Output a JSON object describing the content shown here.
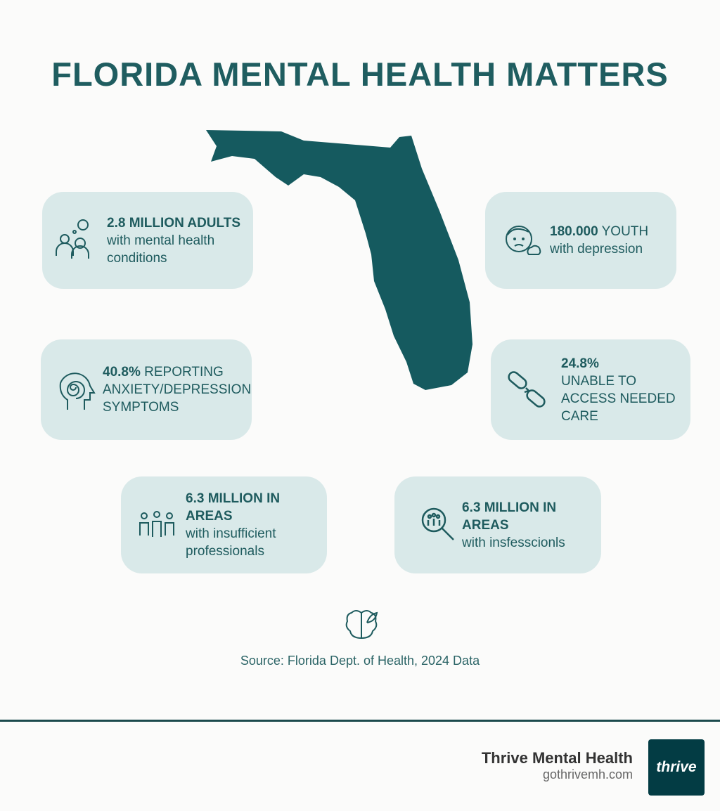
{
  "title": "FLORIDA MENTAL HEALTH MATTERS",
  "stats": [
    {
      "bold": "2.8 MILLION ADULTS",
      "text": "with mental health conditions",
      "icon": "people-thought-icon"
    },
    {
      "bold": "180.000",
      "rest": " YOUTH",
      "text": "with depression",
      "icon": "sad-face-cloud-icon"
    },
    {
      "bold": "40.8%",
      "rest": " REPORTING",
      "text": "ANXIETY/DEPRESSION SYMPTOMS",
      "icon": "head-spiral-icon"
    },
    {
      "bold": "24.8%",
      "text": "UNABLE TO ACCESS NEEDED CARE",
      "icon": "broken-chain-icon"
    },
    {
      "bold": "6.3 MILLION IN AREAS",
      "text": "with insufficient professionals",
      "icon": "group-people-icon"
    },
    {
      "bold": "6.3 MILLION IN AREAS",
      "text": "with insfesscionls",
      "icon": "magnifier-people-icon"
    }
  ],
  "source": "Source: Florida Dept. of Health, 2024 Data",
  "footer": {
    "brand": "Thrive Mental Health",
    "url": "gothrivemh.com",
    "logo_text": "thrive"
  },
  "colors": {
    "primary": "#1f5d60",
    "card": "#d9e9e9",
    "logo_bg": "#033c44"
  }
}
